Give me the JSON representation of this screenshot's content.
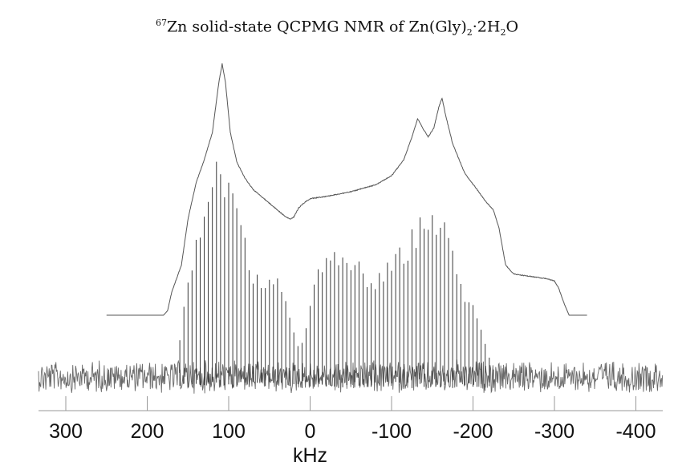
{
  "chart_data": {
    "type": "line",
    "title": {
      "iso_mass": "67",
      "part1": "Zn solid-state QCPMG NMR of Zn(Gly)",
      "sub1": "2",
      "part2": "·2H",
      "sub2": "2",
      "part3": "O"
    },
    "xlabel": "kHz",
    "ylabel": "",
    "x_reversed": true,
    "xlim": [
      340,
      -440
    ],
    "grid": false,
    "x_ticks": [
      {
        "value": 300,
        "label": "300"
      },
      {
        "value": 200,
        "label": "200"
      },
      {
        "value": 100,
        "label": "100"
      },
      {
        "value": 0,
        "label": "0"
      },
      {
        "value": -100,
        "label": "-100"
      },
      {
        "value": -200,
        "label": "-200"
      },
      {
        "value": -300,
        "label": "-300"
      },
      {
        "value": -400,
        "label": "-400"
      }
    ],
    "series": [
      {
        "role": "simulated-powder-pattern",
        "color": "#555555",
        "x_range": [
          250,
          -340
        ],
        "points": [
          [
            250,
            0.0
          ],
          [
            180,
            0.0
          ],
          [
            175,
            0.02
          ],
          [
            170,
            0.1
          ],
          [
            165,
            0.15
          ],
          [
            158,
            0.22
          ],
          [
            150,
            0.42
          ],
          [
            140,
            0.58
          ],
          [
            130,
            0.68
          ],
          [
            120,
            0.8
          ],
          [
            112,
            1.02
          ],
          [
            108,
            1.1
          ],
          [
            104,
            1.02
          ],
          [
            98,
            0.8
          ],
          [
            90,
            0.67
          ],
          [
            80,
            0.6
          ],
          [
            70,
            0.55
          ],
          [
            60,
            0.52
          ],
          [
            50,
            0.49
          ],
          [
            40,
            0.46
          ],
          [
            30,
            0.43
          ],
          [
            24,
            0.42
          ],
          [
            20,
            0.43
          ],
          [
            14,
            0.47
          ],
          [
            8,
            0.49
          ],
          [
            0,
            0.51
          ],
          [
            -20,
            0.52
          ],
          [
            -50,
            0.54
          ],
          [
            -80,
            0.57
          ],
          [
            -100,
            0.61
          ],
          [
            -115,
            0.68
          ],
          [
            -125,
            0.78
          ],
          [
            -132,
            0.86
          ],
          [
            -138,
            0.82
          ],
          [
            -145,
            0.78
          ],
          [
            -152,
            0.82
          ],
          [
            -158,
            0.91
          ],
          [
            -162,
            0.95
          ],
          [
            -166,
            0.88
          ],
          [
            -175,
            0.75
          ],
          [
            -190,
            0.62
          ],
          [
            -205,
            0.55
          ],
          [
            -215,
            0.5
          ],
          [
            -225,
            0.46
          ],
          [
            -232,
            0.38
          ],
          [
            -240,
            0.22
          ],
          [
            -250,
            0.18
          ],
          [
            -270,
            0.17
          ],
          [
            -290,
            0.16
          ],
          [
            -300,
            0.15
          ],
          [
            -305,
            0.12
          ],
          [
            -312,
            0.05
          ],
          [
            -318,
            0.0
          ],
          [
            -340,
            0.0
          ]
        ]
      },
      {
        "role": "experimental-spikelet-spectrum",
        "color": "#222222",
        "noise_color": "#6a6a6a",
        "x_range": [
          340,
          -440
        ],
        "spikelet_spacing_khz": 5,
        "envelope": [
          [
            165,
            0.0
          ],
          [
            158,
            0.25
          ],
          [
            150,
            0.45
          ],
          [
            140,
            0.62
          ],
          [
            130,
            0.82
          ],
          [
            120,
            0.95
          ],
          [
            110,
            1.0
          ],
          [
            100,
            0.92
          ],
          [
            90,
            0.78
          ],
          [
            80,
            0.62
          ],
          [
            70,
            0.5
          ],
          [
            60,
            0.46
          ],
          [
            50,
            0.45
          ],
          [
            40,
            0.44
          ],
          [
            30,
            0.34
          ],
          [
            20,
            0.22
          ],
          [
            14,
            0.15
          ],
          [
            10,
            0.18
          ],
          [
            0,
            0.34
          ],
          [
            -10,
            0.5
          ],
          [
            -20,
            0.54
          ],
          [
            -30,
            0.56
          ],
          [
            -40,
            0.56
          ],
          [
            -50,
            0.55
          ],
          [
            -60,
            0.52
          ],
          [
            -70,
            0.48
          ],
          [
            -80,
            0.45
          ],
          [
            -90,
            0.48
          ],
          [
            -100,
            0.54
          ],
          [
            -110,
            0.58
          ],
          [
            -120,
            0.62
          ],
          [
            -130,
            0.7
          ],
          [
            -140,
            0.76
          ],
          [
            -150,
            0.76
          ],
          [
            -160,
            0.74
          ],
          [
            -170,
            0.65
          ],
          [
            -180,
            0.5
          ],
          [
            -190,
            0.4
          ],
          [
            -200,
            0.33
          ],
          [
            -210,
            0.22
          ],
          [
            -220,
            0.1
          ],
          [
            -228,
            0.0
          ]
        ]
      }
    ]
  }
}
